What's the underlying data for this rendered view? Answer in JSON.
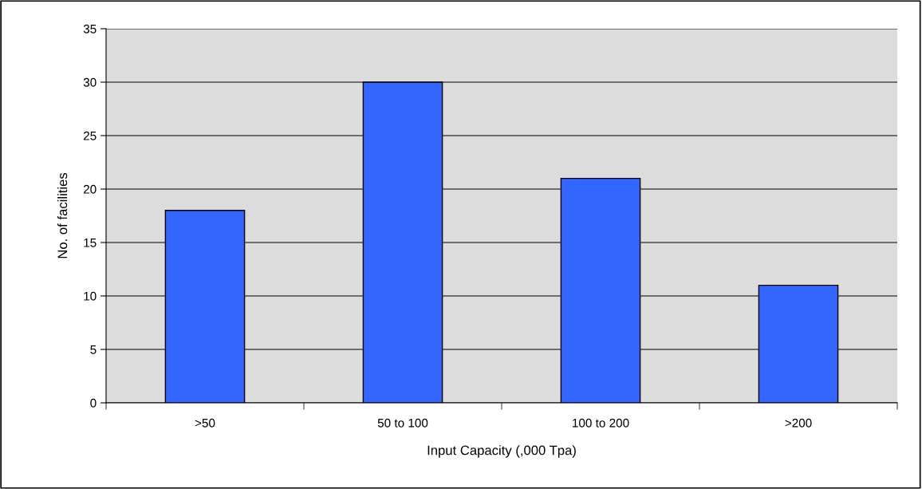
{
  "chart_data": {
    "type": "bar",
    "xlabel": "Input Capacity (,000 Tpa)",
    "ylabel": "No. of facilities",
    "categories": [
      ">50",
      "50 to 100",
      "100 to 200",
      ">200"
    ],
    "values": [
      18,
      30,
      21,
      11
    ],
    "color": "#3366ff",
    "ylim": [
      0,
      35
    ],
    "yticks": [
      0,
      5,
      10,
      15,
      20,
      25,
      30,
      35
    ],
    "grid": "y"
  }
}
